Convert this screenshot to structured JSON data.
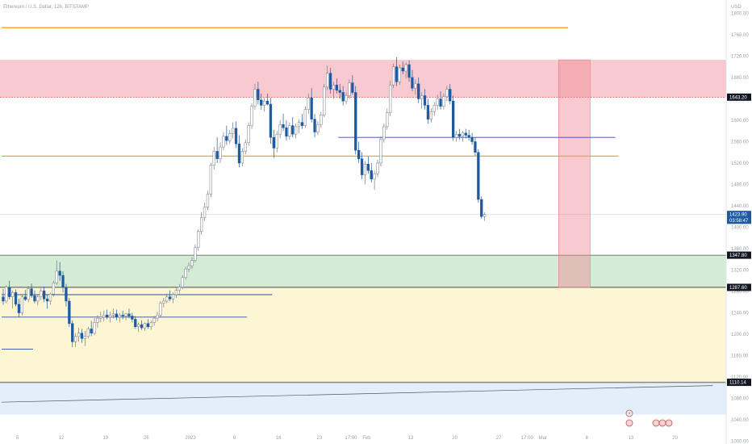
{
  "header": {
    "symbol_title": "Ethereum / U.S. Dollar, 12h, BITSTAMP",
    "currency": "USD"
  },
  "colors": {
    "up_candle": "#ffffff",
    "down_candle": "#1e5aa0",
    "wick": "#787b86",
    "orange_line": "#f5a623",
    "blue_line": "#2e4fa3",
    "red_zone": "#f8c9cf",
    "green_zone": "#d4ecd6",
    "yellow_zone": "#fdf6d4",
    "blue_zone": "#e3eefb"
  },
  "chart_data": {
    "type": "candlestick",
    "y_axis": {
      "min": 1025,
      "max": 1775,
      "tick_labels": [
        "1800.00",
        "1760.00",
        "1720.00",
        "1680.00",
        "1640.00",
        "1600.00",
        "1560.00",
        "1520.00",
        "1480.00",
        "1440.00",
        "1400.00",
        "1360.00",
        "1320.00",
        "1280.00",
        "1240.00",
        "1200.00",
        "1160.00",
        "1120.00",
        "1080.00",
        "1040.00",
        "1000.00"
      ],
      "tick_values": [
        1800,
        1760,
        1720,
        1680,
        1640,
        1600,
        1560,
        1520,
        1480,
        1440,
        1400,
        1360,
        1320,
        1280,
        1240,
        1200,
        1160,
        1120,
        1080,
        1040,
        1000
      ]
    },
    "x_axis": {
      "tick_labels": [
        "5",
        "12",
        "19",
        "26",
        "2023",
        "9",
        "16",
        "23",
        "17:00",
        "Feb",
        "13",
        "20",
        "27",
        "17:00",
        "Mar",
        "6",
        "13",
        "20"
      ],
      "tick_positions": [
        5,
        19,
        33,
        46,
        60,
        74,
        88,
        101,
        111,
        116,
        130,
        144,
        158,
        167,
        172,
        186,
        200,
        214
      ]
    },
    "price_tags": [
      {
        "label": "1643.20",
        "value": 1643.2,
        "style": "neutral"
      },
      {
        "label": "1423.90",
        "value": 1423.9,
        "style": "current"
      },
      {
        "label": "03:58:47",
        "value": 1413,
        "style": "current"
      },
      {
        "label": "1347.80",
        "value": 1347.8,
        "style": "neutral"
      },
      {
        "label": "1287.60",
        "value": 1287.6,
        "style": "neutral"
      },
      {
        "label": "1110.14",
        "value": 1110.14,
        "style": "neutral"
      }
    ],
    "zones": [
      {
        "name": "resistance-zone",
        "from": 1643.2,
        "to": 1713,
        "color": "red_zone"
      },
      {
        "name": "support-zone-green",
        "from": 1287.6,
        "to": 1347.8,
        "color": "green_zone"
      },
      {
        "name": "support-zone-yellow",
        "from": 1110.14,
        "to": 1287.6,
        "color": "yellow_zone"
      },
      {
        "name": "support-zone-blue",
        "from": 1050,
        "to": 1110.14,
        "color": "blue_zone"
      }
    ],
    "hlines": [
      {
        "name": "orange-line-top",
        "value": 1773,
        "x_start": 0,
        "x_end": 180,
        "color": "orange_line"
      },
      {
        "name": "orange-line-mid",
        "value": 1533,
        "x_start": 0,
        "x_end": 196,
        "color": "orange_line"
      },
      {
        "name": "blue-line-feb",
        "value": 1568,
        "x_start": 107,
        "x_end": 195,
        "color": "blue_line"
      },
      {
        "name": "blue-line-dec-a",
        "value": 1274,
        "x_start": 0,
        "x_end": 86,
        "color": "blue_line"
      },
      {
        "name": "blue-line-dec-b",
        "value": 1232,
        "x_start": 0,
        "x_end": 78,
        "color": "blue_line"
      },
      {
        "name": "blue-line-dec-c",
        "value": 1172,
        "x_start": 0,
        "x_end": 10,
        "color": "blue_line"
      }
    ],
    "red_box": {
      "x_start": 177,
      "x_end": 187,
      "from": 1713,
      "to": 1287.6
    },
    "trendline": {
      "x_start": 0,
      "value_start": 1073,
      "x_end": 226,
      "value_end": 1104
    },
    "candles": [
      [
        1270,
        1285,
        1255,
        1262
      ],
      [
        1262,
        1292,
        1258,
        1288
      ],
      [
        1288,
        1300,
        1265,
        1270
      ],
      [
        1270,
        1282,
        1248,
        1278
      ],
      [
        1278,
        1284,
        1252,
        1256
      ],
      [
        1256,
        1266,
        1232,
        1240
      ],
      [
        1240,
        1275,
        1235,
        1270
      ],
      [
        1270,
        1283,
        1262,
        1265
      ],
      [
        1265,
        1290,
        1260,
        1285
      ],
      [
        1285,
        1295,
        1268,
        1272
      ],
      [
        1272,
        1282,
        1258,
        1262
      ],
      [
        1262,
        1275,
        1254,
        1270
      ],
      [
        1270,
        1286,
        1264,
        1281
      ],
      [
        1281,
        1289,
        1260,
        1266
      ],
      [
        1266,
        1274,
        1248,
        1262
      ],
      [
        1262,
        1278,
        1255,
        1275
      ],
      [
        1275,
        1300,
        1270,
        1296
      ],
      [
        1296,
        1338,
        1292,
        1318
      ],
      [
        1318,
        1335,
        1300,
        1310
      ],
      [
        1310,
        1318,
        1278,
        1288
      ],
      [
        1288,
        1294,
        1252,
        1262
      ],
      [
        1262,
        1268,
        1214,
        1220
      ],
      [
        1220,
        1226,
        1176,
        1186
      ],
      [
        1186,
        1202,
        1176,
        1196
      ],
      [
        1196,
        1212,
        1186,
        1202
      ],
      [
        1202,
        1210,
        1184,
        1192
      ],
      [
        1192,
        1206,
        1178,
        1196
      ],
      [
        1196,
        1214,
        1192,
        1210
      ],
      [
        1210,
        1225,
        1196,
        1202
      ],
      [
        1202,
        1230,
        1198,
        1222
      ],
      [
        1222,
        1236,
        1212,
        1230
      ],
      [
        1230,
        1242,
        1222,
        1232
      ],
      [
        1232,
        1244,
        1224,
        1236
      ],
      [
        1236,
        1246,
        1228,
        1232
      ],
      [
        1232,
        1242,
        1222,
        1236
      ],
      [
        1236,
        1248,
        1230,
        1238
      ],
      [
        1238,
        1246,
        1226,
        1232
      ],
      [
        1232,
        1240,
        1222,
        1236
      ],
      [
        1236,
        1244,
        1228,
        1234
      ],
      [
        1234,
        1240,
        1226,
        1238
      ],
      [
        1238,
        1248,
        1230,
        1234
      ],
      [
        1234,
        1240,
        1222,
        1228
      ],
      [
        1228,
        1234,
        1210,
        1214
      ],
      [
        1214,
        1222,
        1204,
        1218
      ],
      [
        1218,
        1226,
        1208,
        1212
      ],
      [
        1212,
        1222,
        1206,
        1220
      ],
      [
        1220,
        1228,
        1210,
        1214
      ],
      [
        1214,
        1226,
        1208,
        1222
      ],
      [
        1222,
        1234,
        1216,
        1230
      ],
      [
        1230,
        1242,
        1224,
        1236
      ],
      [
        1236,
        1262,
        1232,
        1258
      ],
      [
        1258,
        1268,
        1250,
        1262
      ],
      [
        1262,
        1276,
        1258,
        1270
      ],
      [
        1270,
        1282,
        1262,
        1266
      ],
      [
        1266,
        1278,
        1258,
        1274
      ],
      [
        1274,
        1288,
        1268,
        1282
      ],
      [
        1282,
        1294,
        1276,
        1288
      ],
      [
        1288,
        1310,
        1284,
        1306
      ],
      [
        1306,
        1326,
        1302,
        1322
      ],
      [
        1322,
        1334,
        1316,
        1328
      ],
      [
        1328,
        1344,
        1322,
        1338
      ],
      [
        1338,
        1368,
        1334,
        1362
      ],
      [
        1362,
        1396,
        1356,
        1392
      ],
      [
        1392,
        1428,
        1386,
        1418
      ],
      [
        1418,
        1446,
        1412,
        1438
      ],
      [
        1438,
        1468,
        1432,
        1462
      ],
      [
        1462,
        1520,
        1456,
        1516
      ],
      [
        1516,
        1550,
        1508,
        1542
      ],
      [
        1542,
        1568,
        1520,
        1528
      ],
      [
        1528,
        1558,
        1520,
        1550
      ],
      [
        1550,
        1578,
        1544,
        1570
      ],
      [
        1570,
        1590,
        1554,
        1562
      ],
      [
        1562,
        1582,
        1556,
        1575
      ],
      [
        1575,
        1596,
        1566,
        1585
      ],
      [
        1585,
        1598,
        1548,
        1556
      ],
      [
        1556,
        1572,
        1512,
        1520
      ],
      [
        1520,
        1548,
        1514,
        1542
      ],
      [
        1542,
        1564,
        1536,
        1558
      ],
      [
        1558,
        1596,
        1552,
        1590
      ],
      [
        1590,
        1632,
        1584,
        1626
      ],
      [
        1626,
        1668,
        1620,
        1658
      ],
      [
        1658,
        1672,
        1630,
        1638
      ],
      [
        1638,
        1650,
        1620,
        1628
      ],
      [
        1628,
        1642,
        1616,
        1636
      ],
      [
        1636,
        1650,
        1628,
        1630
      ],
      [
        1630,
        1642,
        1556,
        1568
      ],
      [
        1568,
        1582,
        1530,
        1548
      ],
      [
        1548,
        1580,
        1540,
        1574
      ],
      [
        1574,
        1600,
        1566,
        1592
      ],
      [
        1592,
        1612,
        1580,
        1586
      ],
      [
        1586,
        1600,
        1562,
        1570
      ],
      [
        1570,
        1596,
        1564,
        1590
      ],
      [
        1590,
        1606,
        1568,
        1574
      ],
      [
        1574,
        1594,
        1566,
        1588
      ],
      [
        1588,
        1602,
        1576,
        1596
      ],
      [
        1596,
        1612,
        1584,
        1590
      ],
      [
        1590,
        1626,
        1586,
        1620
      ],
      [
        1620,
        1650,
        1612,
        1642
      ],
      [
        1642,
        1660,
        1596,
        1602
      ],
      [
        1602,
        1612,
        1568,
        1578
      ],
      [
        1578,
        1598,
        1572,
        1592
      ],
      [
        1592,
        1616,
        1586,
        1610
      ],
      [
        1610,
        1668,
        1606,
        1662
      ],
      [
        1662,
        1702,
        1656,
        1688
      ],
      [
        1688,
        1698,
        1650,
        1658
      ],
      [
        1658,
        1672,
        1640,
        1666
      ],
      [
        1666,
        1678,
        1650,
        1656
      ],
      [
        1656,
        1668,
        1640,
        1652
      ],
      [
        1652,
        1664,
        1628,
        1636
      ],
      [
        1636,
        1652,
        1630,
        1646
      ],
      [
        1646,
        1676,
        1640,
        1670
      ],
      [
        1670,
        1684,
        1648,
        1652
      ],
      [
        1652,
        1664,
        1536,
        1544
      ],
      [
        1544,
        1560,
        1520,
        1528
      ],
      [
        1528,
        1540,
        1490,
        1498
      ],
      [
        1498,
        1524,
        1480,
        1518
      ],
      [
        1518,
        1532,
        1500,
        1506
      ],
      [
        1506,
        1520,
        1484,
        1490
      ],
      [
        1490,
        1506,
        1470,
        1500
      ],
      [
        1500,
        1526,
        1494,
        1520
      ],
      [
        1520,
        1570,
        1514,
        1564
      ],
      [
        1564,
        1594,
        1558,
        1588
      ],
      [
        1588,
        1622,
        1582,
        1614
      ],
      [
        1614,
        1674,
        1608,
        1666
      ],
      [
        1666,
        1706,
        1660,
        1700
      ],
      [
        1700,
        1718,
        1664,
        1672
      ],
      [
        1672,
        1704,
        1666,
        1698
      ],
      [
        1698,
        1710,
        1686,
        1692
      ],
      [
        1692,
        1708,
        1678,
        1704
      ],
      [
        1704,
        1712,
        1672,
        1680
      ],
      [
        1680,
        1694,
        1654,
        1660
      ],
      [
        1660,
        1676,
        1648,
        1668
      ],
      [
        1668,
        1680,
        1632,
        1640
      ],
      [
        1640,
        1652,
        1622,
        1646
      ],
      [
        1646,
        1658,
        1620,
        1628
      ],
      [
        1628,
        1640,
        1594,
        1602
      ],
      [
        1602,
        1622,
        1596,
        1616
      ],
      [
        1616,
        1634,
        1608,
        1628
      ],
      [
        1628,
        1648,
        1620,
        1640
      ],
      [
        1640,
        1654,
        1620,
        1626
      ],
      [
        1626,
        1650,
        1620,
        1644
      ],
      [
        1644,
        1664,
        1636,
        1658
      ],
      [
        1658,
        1668,
        1630,
        1636
      ],
      [
        1636,
        1646,
        1562,
        1568
      ],
      [
        1568,
        1580,
        1560,
        1574
      ],
      [
        1574,
        1584,
        1564,
        1570
      ],
      [
        1570,
        1580,
        1560,
        1576
      ],
      [
        1576,
        1584,
        1566,
        1572
      ],
      [
        1572,
        1582,
        1562,
        1568
      ],
      [
        1568,
        1576,
        1554,
        1560
      ],
      [
        1560,
        1568,
        1534,
        1540
      ],
      [
        1540,
        1546,
        1446,
        1452
      ],
      [
        1452,
        1458,
        1416,
        1420
      ],
      [
        1420,
        1428,
        1412,
        1424
      ]
    ]
  }
}
